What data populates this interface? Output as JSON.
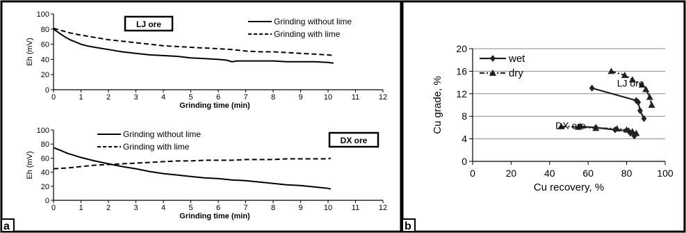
{
  "panel_a_label": "a",
  "panel_b_label": "b",
  "chart_data": [
    {
      "type": "line",
      "panel": "a",
      "box_label": "LJ ore",
      "xlabel": "Grinding time (min)",
      "ylabel": "Eh (mV)",
      "xlim": [
        0,
        12
      ],
      "ylim": [
        0,
        100
      ],
      "xticks": [
        0,
        1,
        2,
        3,
        4,
        5,
        6,
        7,
        8,
        9,
        10,
        11,
        12
      ],
      "yticks": [
        0,
        20,
        40,
        60,
        80,
        100
      ],
      "grid": false,
      "legend_position": "top-right",
      "series": [
        {
          "name": "Grinding without lime",
          "style": "solid",
          "x": [
            0,
            0.2,
            0.4,
            0.6,
            0.8,
            1,
            1.2,
            1.5,
            2,
            2.5,
            3,
            3.5,
            4,
            4.5,
            5,
            5.5,
            6,
            6.3,
            6.5,
            6.7,
            7,
            7.5,
            8,
            8.5,
            9,
            9.5,
            10,
            10.2
          ],
          "y": [
            80,
            75,
            70,
            66,
            63,
            60,
            58,
            56,
            53,
            50,
            48,
            46,
            45,
            44,
            42,
            41,
            40,
            39,
            37,
            38,
            38,
            38,
            38,
            37,
            37,
            37,
            36,
            35
          ]
        },
        {
          "name": "Grinding with lime",
          "style": "dashed",
          "x": [
            0,
            0.3,
            0.6,
            1,
            1.5,
            2,
            2.5,
            3,
            3.5,
            4,
            4.5,
            5,
            5.5,
            6,
            6.5,
            7,
            7.5,
            8,
            8.5,
            9,
            9.5,
            10,
            10.2
          ],
          "y": [
            81,
            78,
            75,
            72,
            69,
            66,
            64,
            62,
            60,
            58,
            57,
            56,
            55,
            54,
            53,
            51,
            50,
            50,
            49,
            48,
            47,
            46,
            45
          ]
        }
      ]
    },
    {
      "type": "line",
      "panel": "a",
      "box_label": "DX ore",
      "xlabel": "Grinding time (min)",
      "ylabel": "Eh (mV)",
      "xlim": [
        0,
        12
      ],
      "ylim": [
        0,
        100
      ],
      "xticks": [
        0,
        1,
        2,
        3,
        4,
        5,
        6,
        7,
        8,
        9,
        10,
        11,
        12
      ],
      "yticks": [
        0,
        20,
        40,
        60,
        80,
        100
      ],
      "grid": false,
      "legend_position": "top-left",
      "series": [
        {
          "name": "Grinding without lime",
          "style": "solid",
          "x": [
            0,
            0.2,
            0.5,
            1,
            1.5,
            2,
            2.5,
            3,
            3.5,
            4,
            4.5,
            5,
            5.5,
            6,
            6.5,
            7,
            7.5,
            8,
            8.5,
            9,
            9.5,
            10,
            10.1
          ],
          "y": [
            75,
            72,
            67,
            61,
            56,
            52,
            48,
            45,
            41,
            38,
            36,
            34,
            32,
            31,
            29,
            28,
            26,
            24,
            22,
            21,
            19,
            17,
            16
          ]
        },
        {
          "name": "Grinding with lime",
          "style": "dashed",
          "x": [
            0,
            0.5,
            1,
            1.5,
            2,
            2.5,
            3,
            3.5,
            4,
            4.5,
            5,
            5.5,
            6,
            6.5,
            7,
            7.5,
            8,
            8.5,
            9,
            9.5,
            10,
            10.1
          ],
          "y": [
            45,
            46,
            48,
            50,
            51,
            52,
            53,
            54,
            55,
            56,
            56,
            57,
            57,
            57,
            58,
            58,
            58,
            59,
            59,
            59,
            59,
            60
          ]
        }
      ]
    },
    {
      "type": "scatter",
      "panel": "b",
      "xlabel": "Cu recovery, %",
      "ylabel": "Cu grade, %",
      "xlim": [
        0,
        100
      ],
      "ylim": [
        0,
        20
      ],
      "xticks": [
        0,
        20,
        40,
        60,
        80,
        100
      ],
      "yticks": [
        0,
        4,
        8,
        12,
        16,
        20
      ],
      "grid": true,
      "legend_position": "top-left",
      "series": [
        {
          "name": "wet",
          "marker": "diamond",
          "style": "solid",
          "groups": [
            {
              "label": "LJ ore",
              "x": [
                62,
                85,
                86,
                87,
                89
              ],
              "y": [
                13,
                10.8,
                10.5,
                9,
                7.6
              ]
            },
            {
              "label": "DX ore",
              "x": [
                56,
                64,
                74,
                81,
                82,
                84
              ],
              "y": [
                6.2,
                6,
                5.6,
                5.4,
                5,
                4.5
              ]
            }
          ]
        },
        {
          "name": "dry",
          "marker": "triangle",
          "style": "dashdot",
          "groups": [
            {
              "label": "LJ ore",
              "x": [
                72,
                79,
                83,
                88,
                90,
                92,
                93
              ],
              "y": [
                16,
                15.3,
                14.5,
                13.6,
                12.8,
                11.4,
                10
              ]
            },
            {
              "label": "DX ore",
              "x": [
                46,
                55,
                64,
                75,
                80,
                83,
                85
              ],
              "y": [
                6.2,
                6.1,
                5.9,
                5.8,
                5.6,
                5.3,
                5
              ]
            }
          ]
        }
      ],
      "annotations": [
        {
          "text": "LJ ore",
          "x": 75,
          "y": 14
        },
        {
          "text": "DX ore",
          "x": 43,
          "y": 6.5
        }
      ]
    }
  ]
}
